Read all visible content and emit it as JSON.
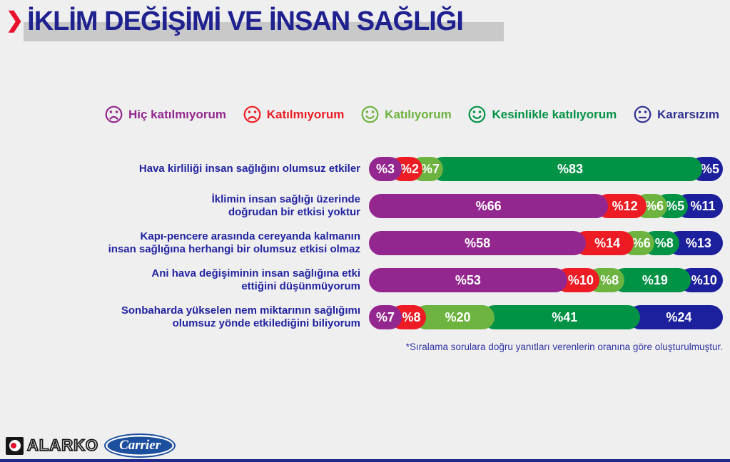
{
  "title": {
    "chevron": "❯",
    "text": "İKLİM DEĞİŞİMİ VE İNSAN SAĞLIĞI"
  },
  "colors": {
    "background": "#f0eff0",
    "title": "#1f218f",
    "title_highlight": "#c9c9c9",
    "chevron_red": "#e8112d",
    "row_label": "#2124a0",
    "footnote": "#3136a4",
    "carrier_blue": "#1c4f9e",
    "bottom_strip": "#202a8c"
  },
  "legend": {
    "items": [
      {
        "label": "Hiç katılmıyorum",
        "color": "#93278f",
        "face": "frown"
      },
      {
        "label": "Katılmıyorum",
        "color": "#ed1c24",
        "face": "frown"
      },
      {
        "label": "Katılıyorum",
        "color": "#6cb33f",
        "face": "smile"
      },
      {
        "label": "Kesinlikle katılıyorum",
        "color": "#009245",
        "face": "smile"
      },
      {
        "label": "Kararsızım",
        "color": "#2e3192",
        "face": "neutral"
      }
    ]
  },
  "chart_data": {
    "type": "bar",
    "subtype": "horizontal-stacked-100-percent",
    "unit": "%",
    "value_prefix": "%",
    "series": [
      "Hiç katılmıyorum",
      "Katılmıyorum",
      "Katılıyorum",
      "Kesinlikle katılıyorum",
      "Kararsızım"
    ],
    "series_colors": [
      "#93278f",
      "#ed1c24",
      "#6cb33f",
      "#009245",
      "#1d209d"
    ],
    "rows": [
      {
        "label": "Hava kirliliği insan sağlığını olumsuz etkiler",
        "lines": [
          "Hava kirliliği insan sağlığını olumsuz etkiler"
        ],
        "values": [
          3,
          2,
          7,
          83,
          5
        ]
      },
      {
        "label": "İklimin insan sağlığı üzerinde doğrudan bir etkisi yoktur",
        "lines": [
          "İklimin insan sağlığı üzerinde",
          "doğrudan bir etkisi yoktur"
        ],
        "values": [
          66,
          12,
          6,
          5,
          11
        ]
      },
      {
        "label": "Kapı-pencere arasında cereyanda kalmanın insan sağlığına herhangi bir olumsuz etkisi olmaz",
        "lines": [
          "Kapı-pencere arasında cereyanda kalmanın",
          "insan sağlığına herhangi bir olumsuz etkisi olmaz"
        ],
        "values": [
          58,
          14,
          6,
          8,
          13
        ]
      },
      {
        "label": "Ani hava değişiminin insan sağlığına etki ettiğini düşünmüyorum",
        "lines": [
          "Ani hava değişiminin insan sağlığına etki",
          "ettiğini düşünmüyorum"
        ],
        "values": [
          53,
          10,
          8,
          19,
          10
        ]
      },
      {
        "label": "Sonbaharda yükselen nem miktarının sağlığımı olumsuz yönde etkilediğini biliyorum",
        "lines": [
          "Sonbaharda yükselen nem miktarının sağlığımı",
          "olumsuz yönde etkilediğini biliyorum"
        ],
        "values": [
          7,
          8,
          20,
          41,
          24
        ]
      }
    ]
  },
  "footnote": "*Sıralama sorulara doğru yanıtları verenlerin oranına göre oluşturulmuştur.",
  "footer": {
    "alarko_label": "ALARKO",
    "carrier_label": "Carrier"
  }
}
